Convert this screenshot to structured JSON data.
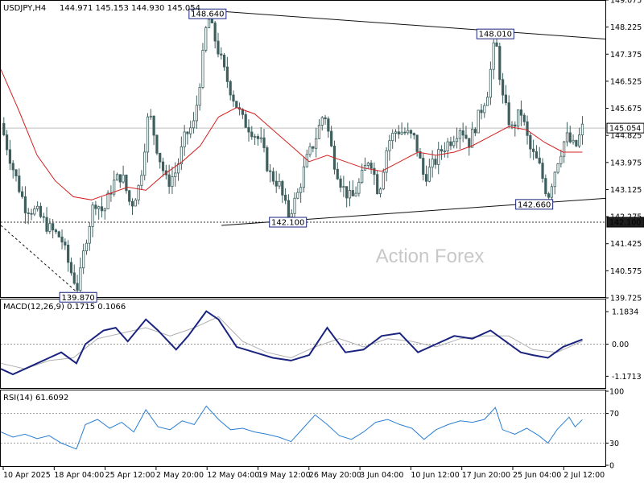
{
  "chart_data": [
    {
      "type": "candlestick",
      "title": "USDJPY,H4",
      "ohlc_text": "144.971 145.153 144.930 145.054",
      "watermark": "Action Forex",
      "ylim": [
        139.725,
        149.05
      ],
      "y_ticks": [
        "149.075",
        "148.225",
        "147.375",
        "146.525",
        "145.675",
        "144.825",
        "143.975",
        "143.125",
        "142.275",
        "141.425",
        "140.575",
        "139.725"
      ],
      "x_ticks": [
        "10 Apr 2025",
        "18 Apr 04:00",
        "25 Apr 12:00",
        "2 May 20:00",
        "12 May 04:00",
        "19 May 12:00",
        "26 May 20:00",
        "3 Jun 04:00",
        "10 Jun 12:00",
        "17 Jun 20:00",
        "25 Jun 04:00",
        "2 Jul 12:00"
      ],
      "current_price": "145.054",
      "support_level": "142.100",
      "annotations": [
        {
          "text": "148.640",
          "x": 0.342,
          "y": 148.64
        },
        {
          "text": "148.010",
          "x": 0.818,
          "y": 148.01
        },
        {
          "text": "142.660",
          "x": 0.905,
          "y": 142.66
        },
        {
          "text": "142.100",
          "x": 0.475,
          "y": 142.1
        },
        {
          "text": "139.870",
          "x": 0.128,
          "y": 139.87
        }
      ],
      "close_series": [
        {
          "x": 0.0,
          "y": 145.2
        },
        {
          "x": 0.02,
          "y": 143.8
        },
        {
          "x": 0.04,
          "y": 142.6
        },
        {
          "x": 0.06,
          "y": 142.4
        },
        {
          "x": 0.08,
          "y": 141.9
        },
        {
          "x": 0.1,
          "y": 141.6
        },
        {
          "x": 0.115,
          "y": 140.6
        },
        {
          "x": 0.128,
          "y": 140.0
        },
        {
          "x": 0.14,
          "y": 141.5
        },
        {
          "x": 0.155,
          "y": 142.8
        },
        {
          "x": 0.17,
          "y": 142.4
        },
        {
          "x": 0.185,
          "y": 143.3
        },
        {
          "x": 0.2,
          "y": 143.6
        },
        {
          "x": 0.215,
          "y": 142.6
        },
        {
          "x": 0.23,
          "y": 143.3
        },
        {
          "x": 0.245,
          "y": 145.6
        },
        {
          "x": 0.26,
          "y": 144.3
        },
        {
          "x": 0.275,
          "y": 143.3
        },
        {
          "x": 0.29,
          "y": 143.7
        },
        {
          "x": 0.305,
          "y": 144.8
        },
        {
          "x": 0.32,
          "y": 145.2
        },
        {
          "x": 0.335,
          "y": 147.4
        },
        {
          "x": 0.342,
          "y": 148.6
        },
        {
          "x": 0.355,
          "y": 147.8
        },
        {
          "x": 0.37,
          "y": 146.8
        },
        {
          "x": 0.385,
          "y": 146.0
        },
        {
          "x": 0.4,
          "y": 145.3
        },
        {
          "x": 0.415,
          "y": 145.0
        },
        {
          "x": 0.43,
          "y": 144.6
        },
        {
          "x": 0.445,
          "y": 143.6
        },
        {
          "x": 0.46,
          "y": 143.3
        },
        {
          "x": 0.475,
          "y": 142.3
        },
        {
          "x": 0.49,
          "y": 142.9
        },
        {
          "x": 0.505,
          "y": 144.0
        },
        {
          "x": 0.52,
          "y": 144.7
        },
        {
          "x": 0.535,
          "y": 145.6
        },
        {
          "x": 0.55,
          "y": 144.1
        },
        {
          "x": 0.565,
          "y": 143.2
        },
        {
          "x": 0.58,
          "y": 142.8
        },
        {
          "x": 0.595,
          "y": 143.4
        },
        {
          "x": 0.61,
          "y": 144.2
        },
        {
          "x": 0.625,
          "y": 143.0
        },
        {
          "x": 0.64,
          "y": 144.6
        },
        {
          "x": 0.655,
          "y": 145.0
        },
        {
          "x": 0.67,
          "y": 144.9
        },
        {
          "x": 0.685,
          "y": 144.7
        },
        {
          "x": 0.7,
          "y": 143.5
        },
        {
          "x": 0.715,
          "y": 143.9
        },
        {
          "x": 0.73,
          "y": 144.4
        },
        {
          "x": 0.745,
          "y": 144.7
        },
        {
          "x": 0.76,
          "y": 145.1
        },
        {
          "x": 0.775,
          "y": 144.6
        },
        {
          "x": 0.79,
          "y": 145.4
        },
        {
          "x": 0.805,
          "y": 146.2
        },
        {
          "x": 0.818,
          "y": 147.9
        },
        {
          "x": 0.83,
          "y": 146.0
        },
        {
          "x": 0.845,
          "y": 145.0
        },
        {
          "x": 0.86,
          "y": 145.6
        },
        {
          "x": 0.875,
          "y": 144.4
        },
        {
          "x": 0.89,
          "y": 143.9
        },
        {
          "x": 0.905,
          "y": 142.9
        },
        {
          "x": 0.92,
          "y": 144.0
        },
        {
          "x": 0.935,
          "y": 144.8
        },
        {
          "x": 0.95,
          "y": 144.4
        },
        {
          "x": 0.962,
          "y": 145.05
        }
      ],
      "ma_series": [
        {
          "x": 0.0,
          "y": 146.9
        },
        {
          "x": 0.03,
          "y": 145.6
        },
        {
          "x": 0.06,
          "y": 144.2
        },
        {
          "x": 0.09,
          "y": 143.4
        },
        {
          "x": 0.12,
          "y": 142.9
        },
        {
          "x": 0.15,
          "y": 142.8
        },
        {
          "x": 0.18,
          "y": 143.0
        },
        {
          "x": 0.21,
          "y": 143.2
        },
        {
          "x": 0.24,
          "y": 143.1
        },
        {
          "x": 0.27,
          "y": 143.6
        },
        {
          "x": 0.3,
          "y": 144.0
        },
        {
          "x": 0.33,
          "y": 144.5
        },
        {
          "x": 0.36,
          "y": 145.4
        },
        {
          "x": 0.39,
          "y": 145.7
        },
        {
          "x": 0.42,
          "y": 145.5
        },
        {
          "x": 0.45,
          "y": 145.0
        },
        {
          "x": 0.48,
          "y": 144.5
        },
        {
          "x": 0.51,
          "y": 144.0
        },
        {
          "x": 0.54,
          "y": 144.2
        },
        {
          "x": 0.57,
          "y": 144.0
        },
        {
          "x": 0.6,
          "y": 143.8
        },
        {
          "x": 0.63,
          "y": 143.7
        },
        {
          "x": 0.66,
          "y": 144.0
        },
        {
          "x": 0.69,
          "y": 144.3
        },
        {
          "x": 0.72,
          "y": 144.2
        },
        {
          "x": 0.75,
          "y": 144.3
        },
        {
          "x": 0.78,
          "y": 144.5
        },
        {
          "x": 0.81,
          "y": 144.8
        },
        {
          "x": 0.84,
          "y": 145.1
        },
        {
          "x": 0.87,
          "y": 145.0
        },
        {
          "x": 0.9,
          "y": 144.6
        },
        {
          "x": 0.93,
          "y": 144.3
        },
        {
          "x": 0.962,
          "y": 144.3
        }
      ],
      "trendlines": [
        {
          "from": {
            "x": 0.342,
            "y": 148.75
          },
          "to": {
            "x": 1.0,
            "y": 147.85
          }
        },
        {
          "from": {
            "x": 0.365,
            "y": 142.0
          },
          "to": {
            "x": 1.0,
            "y": 142.85
          }
        },
        {
          "from": {
            "x": 0.0,
            "y": 142.0
          },
          "to": {
            "x": 0.128,
            "y": 139.87
          },
          "dashed": true
        }
      ]
    },
    {
      "type": "line",
      "title": "MACD(12,26,9) 0.1715 0.1066",
      "ylim": [
        -1.6,
        1.6
      ],
      "y_ticks": [
        "1.1834",
        "0.00",
        "-1.1713"
      ],
      "series": [
        {
          "values": [
            {
              "x": 0.0,
              "y": -0.9
            },
            {
              "x": 0.02,
              "y": -1.1
            },
            {
              "x": 0.05,
              "y": -0.8
            },
            {
              "x": 0.08,
              "y": -0.5
            },
            {
              "x": 0.1,
              "y": -0.3
            },
            {
              "x": 0.125,
              "y": -0.7
            },
            {
              "x": 0.14,
              "y": 0.0
            },
            {
              "x": 0.17,
              "y": 0.5
            },
            {
              "x": 0.19,
              "y": 0.6
            },
            {
              "x": 0.21,
              "y": 0.1
            },
            {
              "x": 0.24,
              "y": 0.9
            },
            {
              "x": 0.26,
              "y": 0.5
            },
            {
              "x": 0.29,
              "y": -0.2
            },
            {
              "x": 0.31,
              "y": 0.3
            },
            {
              "x": 0.34,
              "y": 1.2
            },
            {
              "x": 0.36,
              "y": 0.9
            },
            {
              "x": 0.39,
              "y": -0.1
            },
            {
              "x": 0.42,
              "y": -0.3
            },
            {
              "x": 0.45,
              "y": -0.5
            },
            {
              "x": 0.48,
              "y": -0.6
            },
            {
              "x": 0.51,
              "y": -0.4
            },
            {
              "x": 0.54,
              "y": 0.6
            },
            {
              "x": 0.57,
              "y": -0.3
            },
            {
              "x": 0.6,
              "y": -0.2
            },
            {
              "x": 0.63,
              "y": 0.3
            },
            {
              "x": 0.66,
              "y": 0.4
            },
            {
              "x": 0.69,
              "y": -0.3
            },
            {
              "x": 0.72,
              "y": 0.0
            },
            {
              "x": 0.75,
              "y": 0.3
            },
            {
              "x": 0.78,
              "y": 0.2
            },
            {
              "x": 0.81,
              "y": 0.5
            },
            {
              "x": 0.835,
              "y": 0.1
            },
            {
              "x": 0.86,
              "y": -0.3
            },
            {
              "x": 0.88,
              "y": -0.4
            },
            {
              "x": 0.905,
              "y": -0.5
            },
            {
              "x": 0.93,
              "y": -0.1
            },
            {
              "x": 0.962,
              "y": 0.17
            }
          ]
        },
        {
          "values": [
            {
              "x": 0.0,
              "y": -0.7
            },
            {
              "x": 0.04,
              "y": -0.9
            },
            {
              "x": 0.08,
              "y": -0.6
            },
            {
              "x": 0.12,
              "y": -0.5
            },
            {
              "x": 0.16,
              "y": 0.2
            },
            {
              "x": 0.2,
              "y": 0.4
            },
            {
              "x": 0.24,
              "y": 0.6
            },
            {
              "x": 0.28,
              "y": 0.3
            },
            {
              "x": 0.32,
              "y": 0.6
            },
            {
              "x": 0.36,
              "y": 1.0
            },
            {
              "x": 0.4,
              "y": 0.1
            },
            {
              "x": 0.44,
              "y": -0.3
            },
            {
              "x": 0.48,
              "y": -0.5
            },
            {
              "x": 0.52,
              "y": -0.1
            },
            {
              "x": 0.56,
              "y": 0.2
            },
            {
              "x": 0.6,
              "y": -0.1
            },
            {
              "x": 0.64,
              "y": 0.2
            },
            {
              "x": 0.68,
              "y": 0.1
            },
            {
              "x": 0.72,
              "y": -0.1
            },
            {
              "x": 0.76,
              "y": 0.2
            },
            {
              "x": 0.8,
              "y": 0.3
            },
            {
              "x": 0.84,
              "y": 0.3
            },
            {
              "x": 0.88,
              "y": -0.2
            },
            {
              "x": 0.92,
              "y": -0.3
            },
            {
              "x": 0.962,
              "y": 0.11
            }
          ]
        }
      ]
    },
    {
      "type": "line",
      "title": "RSI(14) 61.6092",
      "ylim": [
        0,
        100
      ],
      "y_ticks": [
        "100",
        "70",
        "30",
        "0"
      ],
      "series": [
        {
          "values": [
            {
              "x": 0.0,
              "y": 45
            },
            {
              "x": 0.02,
              "y": 38
            },
            {
              "x": 0.04,
              "y": 42
            },
            {
              "x": 0.06,
              "y": 36
            },
            {
              "x": 0.08,
              "y": 40
            },
            {
              "x": 0.1,
              "y": 30
            },
            {
              "x": 0.125,
              "y": 22
            },
            {
              "x": 0.14,
              "y": 55
            },
            {
              "x": 0.16,
              "y": 62
            },
            {
              "x": 0.18,
              "y": 50
            },
            {
              "x": 0.2,
              "y": 58
            },
            {
              "x": 0.22,
              "y": 45
            },
            {
              "x": 0.24,
              "y": 75
            },
            {
              "x": 0.26,
              "y": 52
            },
            {
              "x": 0.28,
              "y": 48
            },
            {
              "x": 0.3,
              "y": 60
            },
            {
              "x": 0.32,
              "y": 55
            },
            {
              "x": 0.34,
              "y": 80
            },
            {
              "x": 0.36,
              "y": 62
            },
            {
              "x": 0.38,
              "y": 48
            },
            {
              "x": 0.4,
              "y": 50
            },
            {
              "x": 0.42,
              "y": 45
            },
            {
              "x": 0.44,
              "y": 42
            },
            {
              "x": 0.46,
              "y": 38
            },
            {
              "x": 0.48,
              "y": 32
            },
            {
              "x": 0.5,
              "y": 50
            },
            {
              "x": 0.52,
              "y": 68
            },
            {
              "x": 0.54,
              "y": 55
            },
            {
              "x": 0.56,
              "y": 40
            },
            {
              "x": 0.58,
              "y": 35
            },
            {
              "x": 0.6,
              "y": 45
            },
            {
              "x": 0.62,
              "y": 58
            },
            {
              "x": 0.64,
              "y": 62
            },
            {
              "x": 0.66,
              "y": 55
            },
            {
              "x": 0.68,
              "y": 50
            },
            {
              "x": 0.7,
              "y": 35
            },
            {
              "x": 0.72,
              "y": 48
            },
            {
              "x": 0.74,
              "y": 55
            },
            {
              "x": 0.76,
              "y": 60
            },
            {
              "x": 0.78,
              "y": 58
            },
            {
              "x": 0.8,
              "y": 62
            },
            {
              "x": 0.818,
              "y": 78
            },
            {
              "x": 0.83,
              "y": 48
            },
            {
              "x": 0.85,
              "y": 42
            },
            {
              "x": 0.87,
              "y": 50
            },
            {
              "x": 0.89,
              "y": 40
            },
            {
              "x": 0.905,
              "y": 30
            },
            {
              "x": 0.92,
              "y": 48
            },
            {
              "x": 0.94,
              "y": 65
            },
            {
              "x": 0.95,
              "y": 52
            },
            {
              "x": 0.962,
              "y": 61.6
            }
          ]
        }
      ]
    }
  ]
}
